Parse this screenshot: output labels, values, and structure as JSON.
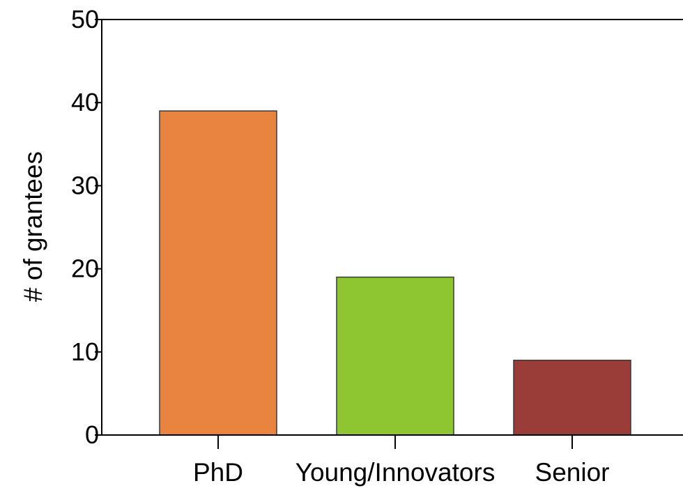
{
  "chart_data": {
    "type": "bar",
    "title": "",
    "xlabel": "",
    "ylabel": "# of grantees",
    "categories": [
      "PhD",
      "Young/Innovators",
      "Senior"
    ],
    "values": [
      39,
      19,
      9
    ],
    "ylim": [
      0,
      50
    ],
    "yticks": [
      0,
      10,
      20,
      30,
      40,
      50
    ],
    "ytick_labels": [
      "0",
      "10",
      "20",
      "30",
      "40",
      "50"
    ],
    "grid": false,
    "legend": "none",
    "bar_colors": [
      "#E88440",
      "#8DC630",
      "#9A3C38"
    ],
    "bar_edge_color": "#3a3a3a",
    "axis_color": "#000000"
  }
}
